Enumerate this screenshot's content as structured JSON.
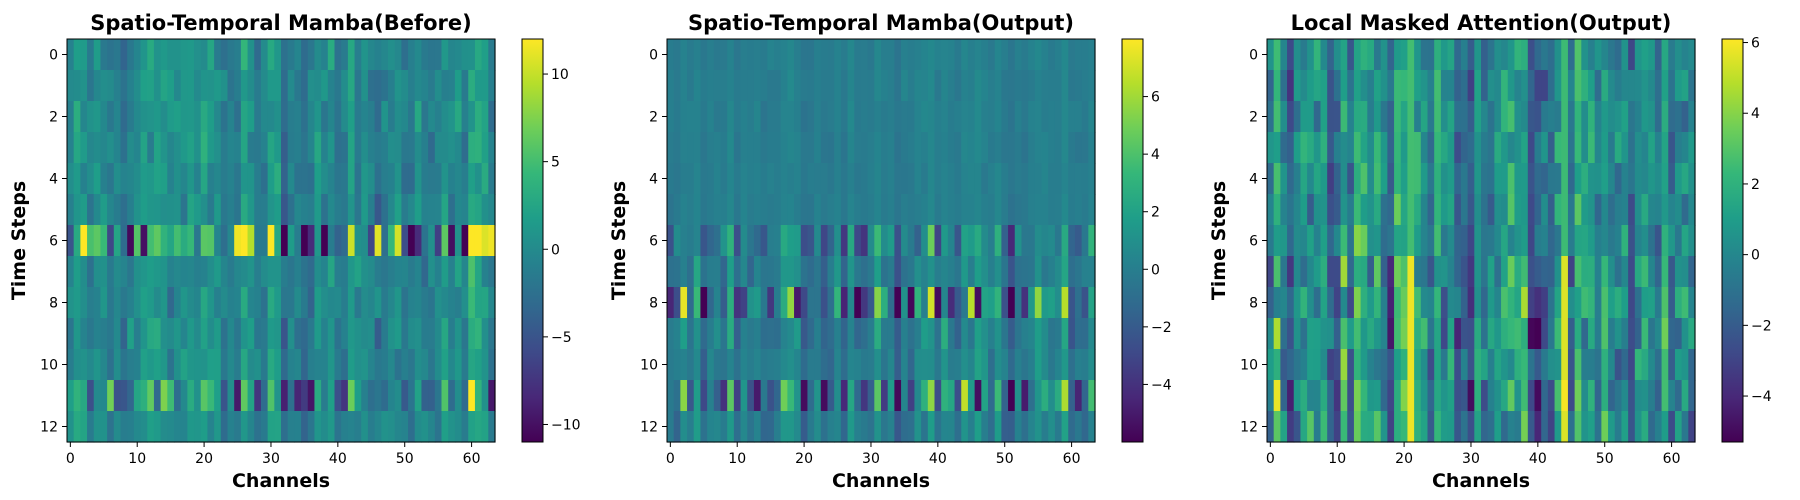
{
  "chart_data": [
    {
      "type": "heatmap",
      "title": "Spatio-Temporal Mamba(Before)",
      "xlabel": "Channels",
      "ylabel": "Time Steps",
      "x_range": [
        0,
        63
      ],
      "y_range": [
        0,
        12
      ],
      "xticks": [
        "0",
        "10",
        "20",
        "30",
        "40",
        "50",
        "60"
      ],
      "yticks": [
        "0",
        "2",
        "4",
        "6",
        "8",
        "10",
        "12"
      ],
      "colorbar": {
        "min": -11,
        "max": 12,
        "ticks": [
          "10",
          "5",
          "0",
          "−5",
          "−10"
        ],
        "tick_values": [
          10,
          5,
          0,
          -5,
          -10
        ]
      },
      "colormap": "viridis",
      "rows": 13,
      "cols": 64,
      "row_emphasis": [
        0.6,
        0.6,
        0.6,
        0.6,
        0.6,
        0.6,
        2.6,
        0.6,
        0.6,
        0.6,
        0.6,
        1.6,
        0.6
      ],
      "strong_cells": [
        {
          "row": 6,
          "col": 25,
          "value": 11.5
        },
        {
          "row": 6,
          "col": 46,
          "value": 11
        },
        {
          "row": 6,
          "col": 49,
          "value": 10.5
        },
        {
          "row": 6,
          "col": 63,
          "value": 11.5
        },
        {
          "row": 6,
          "col": 9,
          "value": -10.5
        },
        {
          "row": 6,
          "col": 11,
          "value": -10
        },
        {
          "row": 11,
          "col": 25,
          "value": -9.5
        },
        {
          "row": 11,
          "col": 63,
          "value": -9.5
        },
        {
          "row": 11,
          "col": 6,
          "value": 7
        }
      ],
      "seed": 11
    },
    {
      "type": "heatmap",
      "title": "Spatio-Temporal Mamba(Output)",
      "xlabel": "Channels",
      "ylabel": "Time Steps",
      "x_range": [
        0,
        63
      ],
      "y_range": [
        0,
        12
      ],
      "xticks": [
        "0",
        "10",
        "20",
        "30",
        "40",
        "50",
        "60"
      ],
      "yticks": [
        "0",
        "2",
        "4",
        "6",
        "8",
        "10",
        "12"
      ],
      "colorbar": {
        "min": -6,
        "max": 8,
        "ticks": [
          "6",
          "4",
          "2",
          "0",
          "−2",
          "−4"
        ],
        "tick_values": [
          6,
          4,
          2,
          0,
          -2,
          -4
        ]
      },
      "colormap": "viridis",
      "rows": 13,
      "cols": 64,
      "row_emphasis": [
        0.15,
        0.15,
        0.15,
        0.15,
        0.15,
        0.15,
        1.1,
        0.5,
        1.8,
        0.6,
        0.4,
        1.6,
        0.5
      ],
      "strong_cells": [
        {
          "row": 8,
          "col": 2,
          "value": 7.5
        },
        {
          "row": 8,
          "col": 45,
          "value": 6.5
        },
        {
          "row": 8,
          "col": 46,
          "value": -5.5
        },
        {
          "row": 11,
          "col": 46,
          "value": -5.5
        },
        {
          "row": 11,
          "col": 2,
          "value": 5.5
        },
        {
          "row": 8,
          "col": 19,
          "value": -5
        },
        {
          "row": 11,
          "col": 13,
          "value": -5
        }
      ],
      "seed": 23
    },
    {
      "type": "heatmap",
      "title": "Local Masked Attention(Output)",
      "xlabel": "Channels",
      "ylabel": "Time Steps",
      "x_range": [
        0,
        63
      ],
      "y_range": [
        0,
        12
      ],
      "xticks": [
        "0",
        "10",
        "20",
        "30",
        "40",
        "50",
        "60"
      ],
      "yticks": [
        "0",
        "2",
        "4",
        "6",
        "8",
        "10",
        "12"
      ],
      "colorbar": {
        "min": -5.3,
        "max": 6.1,
        "ticks": [
          "6",
          "4",
          "2",
          "0",
          "−2",
          "−4"
        ],
        "tick_values": [
          6,
          4,
          2,
          0,
          -2,
          -4
        ]
      },
      "colormap": "viridis",
      "rows": 13,
      "cols": 64,
      "row_emphasis": [
        1.0,
        1.0,
        1.0,
        1.0,
        1.0,
        1.0,
        1.0,
        1.4,
        1.4,
        1.4,
        1.4,
        1.4,
        1.4
      ],
      "strong_columns": [
        {
          "col": 21,
          "value": 5.8,
          "from_row": 7
        },
        {
          "col": 44,
          "value": 5.5,
          "from_row": 7
        }
      ],
      "strong_cells": [
        {
          "row": 11,
          "col": 40,
          "value": -5
        },
        {
          "row": 11,
          "col": 44,
          "value": 6
        }
      ],
      "seed": 37
    }
  ]
}
